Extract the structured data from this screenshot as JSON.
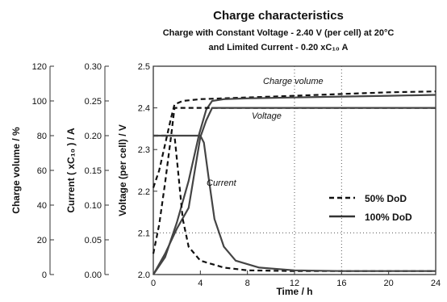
{
  "chart_data": {
    "type": "line",
    "title": "Charge characteristics",
    "subtitle_line1": "Charge with Constant Voltage - 2.40 V (per cell) at 20°C",
    "subtitle_line2": "and Limited Current - 0.20 xC₁₀ A",
    "xlabel": "Time / h",
    "xlim": [
      0,
      24
    ],
    "x_ticks": [
      "0",
      "4",
      "8",
      "12",
      "16",
      "20",
      "24"
    ],
    "axes": {
      "charge": {
        "label": "Charge volume / %",
        "ylim": [
          0,
          120
        ],
        "ticks": [
          "0",
          "20",
          "40",
          "60",
          "80",
          "100",
          "120"
        ]
      },
      "current": {
        "label": "Current ( xC₁₀ ) / A",
        "ylim": [
          0,
          0.3
        ],
        "ticks": [
          "0.00",
          "0.05",
          "0.10",
          "0.15",
          "0.20",
          "0.25",
          "0.30"
        ]
      },
      "voltage": {
        "label": "Voltage (per cell) / V",
        "ylim": [
          2.0,
          2.5
        ],
        "ticks": [
          "2.0",
          "2.1",
          "2.2",
          "2.3",
          "2.4",
          "2.5"
        ]
      }
    },
    "grid": "dotted reference lines at 12 h, 16 h and 2.1 V",
    "legend": {
      "position": "bottom-right",
      "entries": [
        {
          "label": "50% DoD",
          "style": "dashed"
        },
        {
          "label": "100% DoD",
          "style": "solid"
        }
      ]
    },
    "annotations": {
      "charge": "Charge volume",
      "voltage": "Voltage",
      "current": "Current"
    },
    "series": [
      {
        "quantity": "charge",
        "legend": "50% DoD",
        "axis": "charge",
        "points": [
          [
            0,
            50
          ],
          [
            0.5,
            60
          ],
          [
            1,
            75
          ],
          [
            1.5,
            90
          ],
          [
            1.8,
            98
          ],
          [
            2.5,
            100
          ],
          [
            4,
            101
          ],
          [
            8,
            102
          ],
          [
            12,
            103
          ],
          [
            16,
            104
          ],
          [
            20,
            105
          ],
          [
            24,
            105.5
          ]
        ]
      },
      {
        "quantity": "charge",
        "legend": "100% DoD",
        "axis": "charge",
        "points": [
          [
            0,
            0
          ],
          [
            1,
            10
          ],
          [
            2,
            30
          ],
          [
            3,
            54
          ],
          [
            3.9,
            81
          ],
          [
            4.5,
            95
          ],
          [
            5,
            100
          ],
          [
            6,
            101
          ],
          [
            8,
            101.5
          ],
          [
            12,
            102
          ],
          [
            16,
            102.5
          ],
          [
            20,
            103
          ],
          [
            24,
            103.5
          ]
        ]
      },
      {
        "quantity": "voltage",
        "legend": "50% DoD",
        "axis": "voltage",
        "points": [
          [
            0,
            2.05
          ],
          [
            0.5,
            2.12
          ],
          [
            1,
            2.22
          ],
          [
            1.5,
            2.33
          ],
          [
            1.8,
            2.4
          ],
          [
            24,
            2.4
          ]
        ]
      },
      {
        "quantity": "voltage",
        "legend": "100% DoD",
        "axis": "voltage",
        "points": [
          [
            0,
            2.0
          ],
          [
            1,
            2.05
          ],
          [
            2,
            2.11
          ],
          [
            3,
            2.16
          ],
          [
            4,
            2.33
          ],
          [
            4.5,
            2.37
          ],
          [
            5,
            2.4
          ],
          [
            24,
            2.4
          ]
        ]
      },
      {
        "quantity": "current",
        "legend": "50% DoD",
        "axis": "current",
        "points": [
          [
            0,
            0.2
          ],
          [
            1.8,
            0.2
          ],
          [
            2.1,
            0.15
          ],
          [
            2.5,
            0.08
          ],
          [
            3,
            0.04
          ],
          [
            4,
            0.02
          ],
          [
            6,
            0.01
          ],
          [
            8,
            0.006
          ],
          [
            12,
            0.005
          ],
          [
            24,
            0.005
          ]
        ]
      },
      {
        "quantity": "current",
        "legend": "100% DoD",
        "axis": "current",
        "points": [
          [
            0,
            0.2
          ],
          [
            4,
            0.2
          ],
          [
            4.3,
            0.19
          ],
          [
            4.7,
            0.14
          ],
          [
            5.2,
            0.08
          ],
          [
            6,
            0.04
          ],
          [
            7,
            0.02
          ],
          [
            9,
            0.01
          ],
          [
            12,
            0.006
          ],
          [
            16,
            0.005
          ],
          [
            24,
            0.005
          ]
        ]
      }
    ]
  }
}
